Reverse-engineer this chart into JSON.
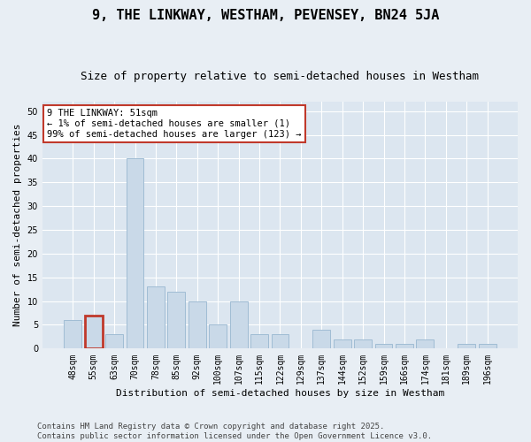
{
  "title1": "9, THE LINKWAY, WESTHAM, PEVENSEY, BN24 5JA",
  "title2": "Size of property relative to semi-detached houses in Westham",
  "xlabel": "Distribution of semi-detached houses by size in Westham",
  "ylabel": "Number of semi-detached properties",
  "categories": [
    "48sqm",
    "55sqm",
    "63sqm",
    "70sqm",
    "78sqm",
    "85sqm",
    "92sqm",
    "100sqm",
    "107sqm",
    "115sqm",
    "122sqm",
    "129sqm",
    "137sqm",
    "144sqm",
    "152sqm",
    "159sqm",
    "166sqm",
    "174sqm",
    "181sqm",
    "189sqm",
    "196sqm"
  ],
  "values": [
    6,
    7,
    3,
    40,
    13,
    12,
    10,
    5,
    10,
    3,
    3,
    0,
    4,
    2,
    2,
    1,
    1,
    2,
    0,
    1,
    1
  ],
  "bar_color": "#c9d9e8",
  "bar_edge_color": "#a0bcd4",
  "highlight_bar_index": 1,
  "highlight_bar_edge_color": "#c0392b",
  "annotation_title": "9 THE LINKWAY: 51sqm",
  "annotation_line1": "← 1% of semi-detached houses are smaller (1)",
  "annotation_line2": "99% of semi-detached houses are larger (123) →",
  "annotation_box_color": "#c0392b",
  "ylim": [
    0,
    52
  ],
  "yticks": [
    0,
    5,
    10,
    15,
    20,
    25,
    30,
    35,
    40,
    45,
    50
  ],
  "footer": "Contains HM Land Registry data © Crown copyright and database right 2025.\nContains public sector information licensed under the Open Government Licence v3.0.",
  "bg_color": "#e8eef4",
  "plot_bg_color": "#dce6f0",
  "grid_color": "#ffffff",
  "title1_fontsize": 11,
  "title2_fontsize": 9,
  "xlabel_fontsize": 8,
  "ylabel_fontsize": 8,
  "tick_fontsize": 7,
  "annotation_fontsize": 7.5,
  "footer_fontsize": 6.5
}
